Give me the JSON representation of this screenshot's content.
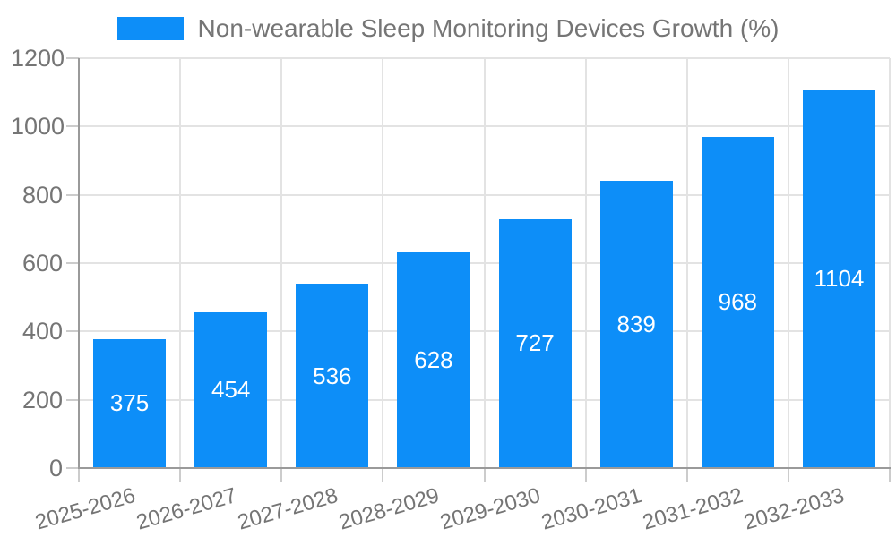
{
  "legend": {
    "label": "Non-wearable Sleep Monitoring Devices Growth (%)",
    "swatch_color": "#0d8ef8"
  },
  "chart_data": {
    "type": "bar",
    "title": "Non-wearable Sleep Monitoring Devices Growth (%)",
    "categories": [
      "2025-2026",
      "2026-2027",
      "2027-2028",
      "2028-2029",
      "2029-2030",
      "2030-2031",
      "2031-2032",
      "2032-2033"
    ],
    "values": [
      375,
      454,
      536,
      628,
      727,
      839,
      968,
      1104
    ],
    "xlabel": "",
    "ylabel": "",
    "ylim": [
      0,
      1200
    ],
    "yticks": [
      0,
      200,
      400,
      600,
      800,
      1000,
      1200
    ],
    "grid": true,
    "legend_position": "top",
    "bar_color": "#0d8ef8",
    "value_label_color": "#ffffff",
    "grid_color": "#e3e3e3",
    "axis_color": "#9a9a9a",
    "tick_color": "#cccccc",
    "tick_label_color": "#757575"
  }
}
